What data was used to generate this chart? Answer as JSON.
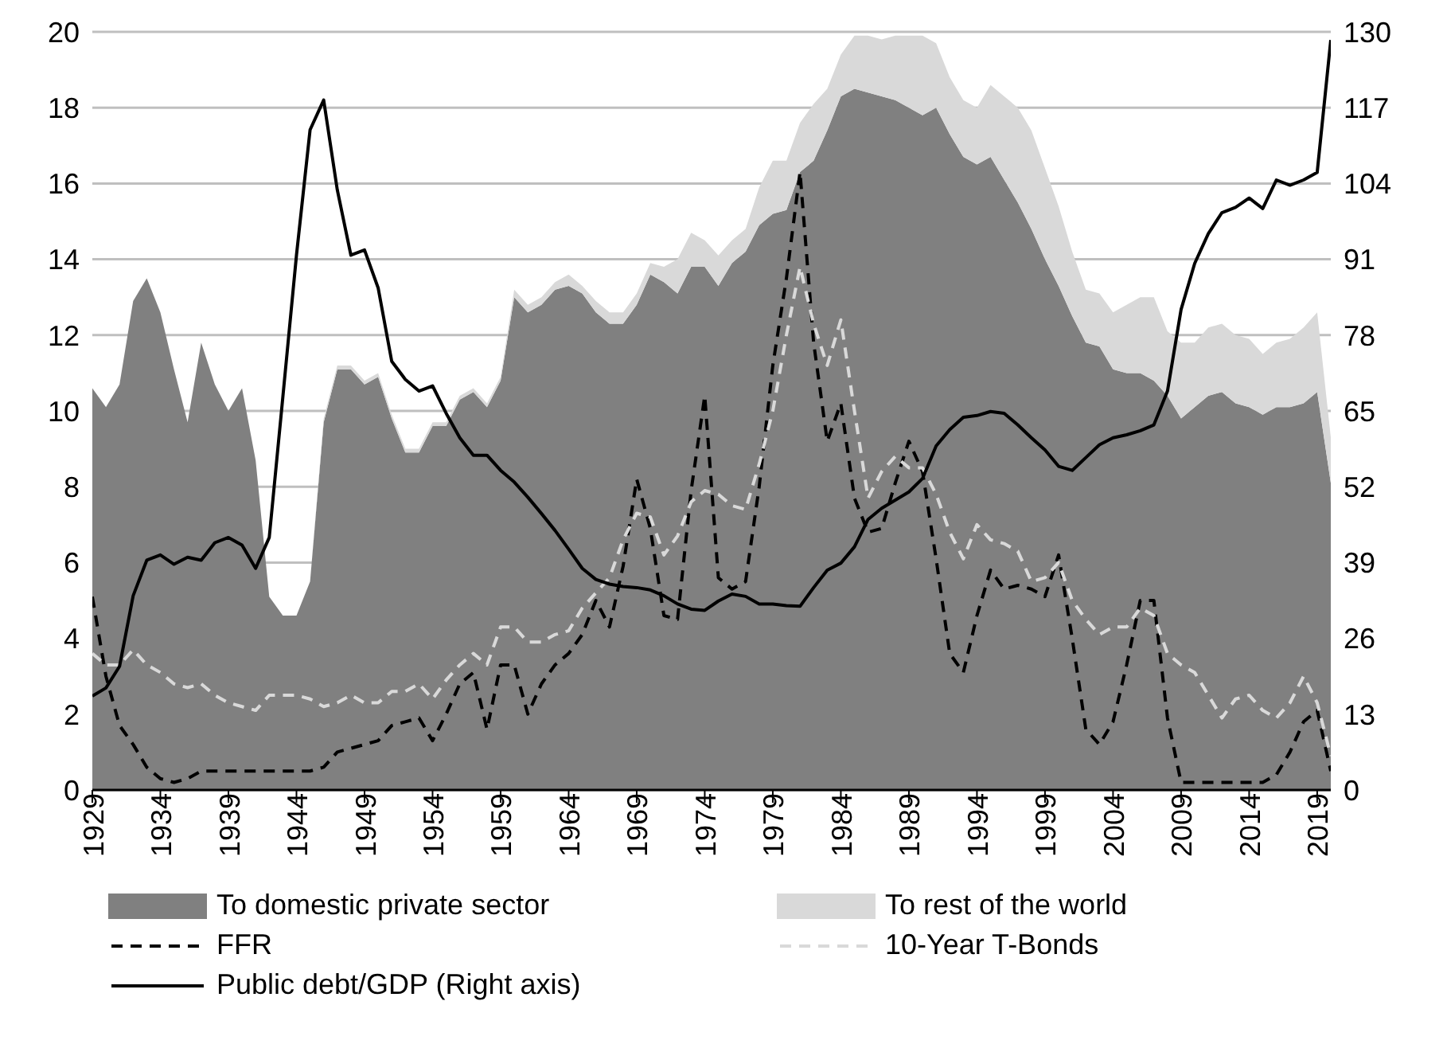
{
  "chart_data": {
    "type": "area",
    "stacked": true,
    "grid": "y",
    "legend": "bottom",
    "x": [
      1929,
      1930,
      1931,
      1932,
      1933,
      1934,
      1935,
      1936,
      1937,
      1938,
      1939,
      1940,
      1941,
      1942,
      1943,
      1944,
      1945,
      1946,
      1947,
      1948,
      1949,
      1950,
      1951,
      1952,
      1953,
      1954,
      1955,
      1956,
      1957,
      1958,
      1959,
      1960,
      1961,
      1962,
      1963,
      1964,
      1965,
      1966,
      1967,
      1968,
      1969,
      1970,
      1971,
      1972,
      1973,
      1974,
      1975,
      1976,
      1977,
      1978,
      1979,
      1980,
      1981,
      1982,
      1983,
      1984,
      1985,
      1986,
      1987,
      1988,
      1989,
      1990,
      1991,
      1992,
      1993,
      1994,
      1995,
      1996,
      1997,
      1998,
      1999,
      2000,
      2001,
      2002,
      2003,
      2004,
      2005,
      2006,
      2007,
      2008,
      2009,
      2010,
      2011,
      2012,
      2013,
      2014,
      2015,
      2016,
      2017,
      2018,
      2019,
      2020
    ],
    "xlim": [
      1929,
      2020
    ],
    "xticks": [
      1929,
      1934,
      1939,
      1944,
      1949,
      1954,
      1959,
      1964,
      1969,
      1974,
      1979,
      1984,
      1989,
      1994,
      1999,
      2004,
      2009,
      2014,
      2019
    ],
    "ylim": [
      0,
      20
    ],
    "yticks": [
      0,
      2,
      4,
      6,
      8,
      10,
      12,
      14,
      16,
      18,
      20
    ],
    "y2lim": [
      0,
      130
    ],
    "y2ticks": [
      0,
      13,
      26,
      39,
      52,
      65,
      78,
      91,
      104,
      117,
      130
    ],
    "series": [
      {
        "name": "To domestic private sector",
        "color": "#808080",
        "values": [
          10.6,
          10.1,
          10.7,
          12.9,
          13.5,
          12.6,
          11.1,
          9.7,
          11.8,
          10.7,
          10.0,
          10.6,
          8.7,
          5.1,
          4.6,
          4.6,
          5.5,
          9.7,
          11.1,
          11.1,
          10.7,
          10.9,
          9.8,
          8.9,
          8.9,
          9.6,
          9.6,
          10.3,
          10.5,
          10.1,
          10.8,
          13.0,
          12.6,
          12.8,
          13.2,
          13.3,
          13.1,
          12.6,
          12.3,
          12.3,
          12.8,
          13.6,
          13.4,
          13.1,
          13.8,
          13.8,
          13.3,
          13.9,
          14.2,
          14.9,
          15.2,
          15.3,
          16.3,
          16.6,
          17.4,
          18.3,
          18.5,
          18.4,
          18.3,
          18.2,
          18.0,
          17.8,
          18.0,
          17.3,
          16.7,
          16.5,
          16.7,
          16.1,
          15.5,
          14.8,
          14.0,
          13.3,
          12.5,
          11.8,
          11.7,
          11.1,
          11.0,
          11.0,
          10.8,
          10.4,
          9.8,
          10.1,
          10.4,
          10.5,
          10.2,
          10.1,
          9.9,
          10.1,
          10.1,
          10.2,
          10.5,
          8.1
        ]
      },
      {
        "name": "To rest of the world",
        "color": "#d9d9d9",
        "values": [
          0,
          0,
          0,
          0,
          0,
          0,
          0,
          0,
          0,
          0,
          0,
          0,
          0,
          0,
          0,
          0,
          0,
          0.1,
          0.1,
          0.1,
          0.1,
          0.1,
          0.1,
          0.1,
          0.1,
          0.1,
          0.1,
          0.1,
          0.1,
          0.1,
          0.1,
          0.2,
          0.2,
          0.2,
          0.2,
          0.3,
          0.2,
          0.3,
          0.3,
          0.3,
          0.3,
          0.3,
          0.4,
          0.9,
          0.9,
          0.7,
          0.8,
          0.6,
          0.6,
          1.0,
          1.4,
          1.3,
          1.3,
          1.5,
          1.1,
          1.1,
          1.4,
          1.5,
          1.5,
          1.7,
          1.9,
          2.1,
          1.7,
          1.5,
          1.5,
          1.5,
          1.9,
          2.2,
          2.5,
          2.6,
          2.4,
          2.1,
          1.7,
          1.4,
          1.4,
          1.5,
          1.8,
          2.0,
          2.2,
          1.7,
          2.0,
          1.7,
          1.8,
          1.8,
          1.8,
          1.8,
          1.6,
          1.7,
          1.8,
          2.0,
          2.1,
          1.2
        ]
      },
      {
        "name": "FFR",
        "type": "line",
        "line_style": "dashed",
        "color": "#000000",
        "values": [
          5.1,
          3.0,
          1.7,
          1.2,
          0.6,
          0.3,
          0.2,
          0.3,
          0.5,
          0.5,
          0.5,
          0.5,
          0.5,
          0.5,
          0.5,
          0.5,
          0.5,
          0.6,
          1.0,
          1.1,
          1.2,
          1.3,
          1.7,
          1.8,
          1.9,
          1.3,
          2.0,
          2.8,
          3.1,
          1.6,
          3.3,
          3.3,
          2.0,
          2.8,
          3.3,
          3.6,
          4.1,
          5.0,
          4.3,
          5.9,
          8.2,
          6.9,
          4.6,
          4.5,
          7.9,
          10.4,
          5.6,
          5.3,
          5.5,
          8.0,
          11.2,
          13.5,
          16.3,
          11.8,
          9.2,
          10.2,
          7.7,
          6.8,
          6.9,
          8.1,
          9.2,
          8.4,
          6.1,
          3.6,
          3.1,
          4.6,
          5.8,
          5.3,
          5.4,
          5.3,
          5.1,
          6.2,
          4.0,
          1.6,
          1.2,
          1.8,
          3.3,
          5.0,
          5.0,
          1.9,
          0.2,
          0.2,
          0.2,
          0.2,
          0.2,
          0.2,
          0.2,
          0.4,
          1.0,
          1.8,
          2.1,
          0.5
        ]
      },
      {
        "name": "10-Year T-Bonds",
        "type": "line",
        "line_style": "dashed",
        "color": "#d9d9d9",
        "values": [
          3.6,
          3.3,
          3.3,
          3.7,
          3.3,
          3.1,
          2.8,
          2.7,
          2.8,
          2.5,
          2.3,
          2.2,
          2.1,
          2.5,
          2.5,
          2.5,
          2.4,
          2.2,
          2.3,
          2.5,
          2.3,
          2.3,
          2.6,
          2.6,
          2.8,
          2.4,
          2.9,
          3.3,
          3.6,
          3.3,
          4.3,
          4.3,
          3.9,
          3.9,
          4.1,
          4.2,
          4.8,
          5.2,
          5.6,
          6.6,
          7.3,
          7.2,
          6.2,
          6.7,
          7.6,
          7.9,
          7.8,
          7.5,
          7.4,
          8.6,
          10.0,
          12.0,
          13.8,
          12.3,
          11.2,
          12.4,
          10.0,
          7.7,
          8.4,
          8.8,
          8.5,
          8.5,
          7.8,
          6.8,
          6.1,
          7.0,
          6.6,
          6.5,
          6.3,
          5.5,
          5.6,
          6.0,
          5.0,
          4.5,
          4.1,
          4.3,
          4.3,
          4.8,
          4.6,
          3.6,
          3.3,
          3.1,
          2.5,
          1.9,
          2.4,
          2.5,
          2.1,
          1.9,
          2.3,
          3.0,
          2.3,
          0.9
        ]
      },
      {
        "name": "Public debt/GDP (Right axis)",
        "type": "line",
        "line_style": "solid",
        "axis": "y2",
        "color": "#000000",
        "values": [
          16.1,
          17.5,
          21.2,
          33.3,
          39.4,
          40.3,
          38.7,
          39.9,
          39.4,
          42.4,
          43.3,
          42.0,
          38.0,
          43.3,
          67.4,
          91.7,
          113.2,
          118.3,
          102.9,
          91.7,
          92.6,
          86.1,
          73.5,
          70.4,
          68.4,
          69.3,
          64.6,
          60.4,
          57.4,
          57.4,
          54.8,
          52.8,
          50.2,
          47.4,
          44.5,
          41.3,
          38.0,
          36.1,
          35.3,
          34.9,
          34.7,
          34.3,
          33.3,
          31.9,
          31.0,
          30.8,
          32.4,
          33.6,
          33.2,
          31.9,
          31.9,
          31.6,
          31.5,
          34.7,
          37.7,
          38.9,
          41.7,
          46.4,
          48.3,
          49.7,
          51.1,
          53.4,
          59.0,
          61.8,
          63.9,
          64.2,
          64.9,
          64.6,
          62.6,
          60.4,
          58.3,
          55.5,
          54.8,
          57.0,
          59.2,
          60.4,
          60.9,
          61.6,
          62.6,
          68.4,
          82.4,
          90.3,
          95.4,
          99.0,
          99.9,
          101.5,
          99.7,
          104.6,
          103.7,
          104.6,
          105.9,
          128.6
        ]
      }
    ]
  }
}
